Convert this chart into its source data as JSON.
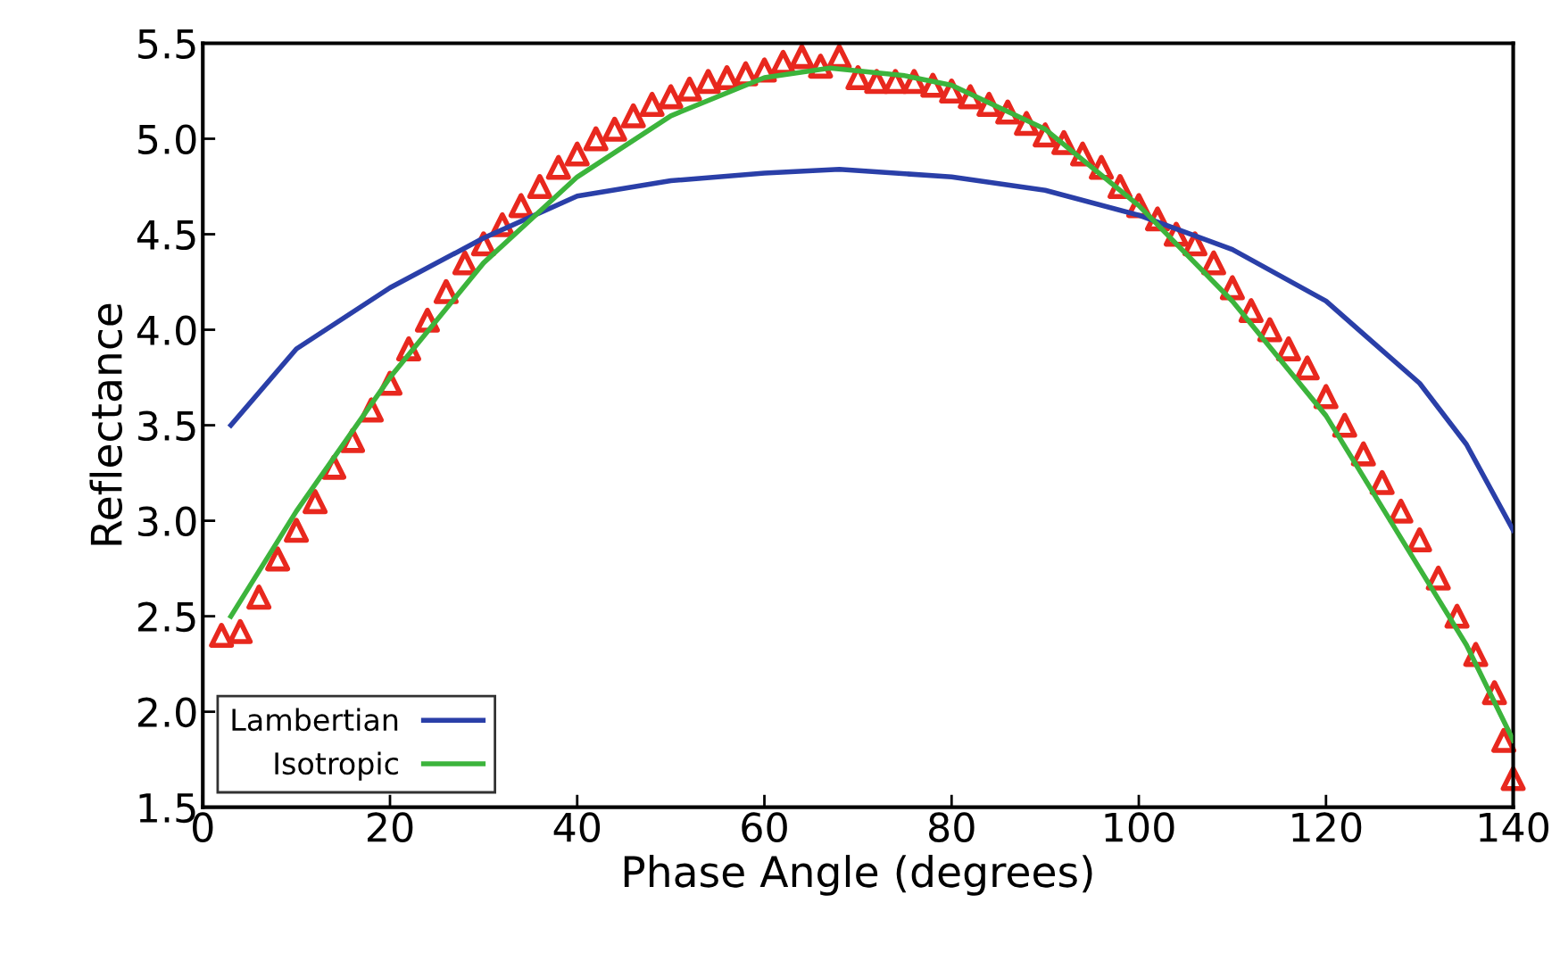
{
  "chart_data": {
    "type": "line",
    "xlabel": "Phase Angle (degrees)",
    "ylabel": "Reflectance",
    "xlim": [
      0,
      140
    ],
    "xticks": [
      0,
      20,
      40,
      60,
      80,
      100,
      120,
      140
    ],
    "ylim": [
      1.5,
      5.5
    ],
    "yticks": [
      {
        "value": 1.5,
        "label": "1.5"
      },
      {
        "value": 2.0,
        "label": "2.0"
      },
      {
        "value": 2.5,
        "label": "2.5"
      },
      {
        "value": 3.0,
        "label": "3.0"
      },
      {
        "value": 3.5,
        "label": "3.5"
      },
      {
        "value": 4.0,
        "label": "4.0"
      },
      {
        "value": 4.5,
        "label": "4.5"
      },
      {
        "value": 5.0,
        "label": "5.0"
      },
      {
        "value": 5.5,
        "label": "5.5"
      }
    ],
    "grid": false,
    "legend": "bottom left",
    "series": [
      {
        "type": "scatter",
        "marker": "triangle",
        "color": "#e8281e",
        "x": [
          2,
          4,
          6,
          8,
          10,
          12,
          14,
          16,
          18,
          20,
          22,
          24,
          26,
          28,
          30,
          32,
          34,
          36,
          38,
          40,
          42,
          44,
          46,
          48,
          50,
          52,
          54,
          56,
          58,
          60,
          62,
          64,
          66,
          68,
          70,
          72,
          74,
          76,
          78,
          80,
          82,
          84,
          86,
          88,
          90,
          92,
          94,
          96,
          98,
          100,
          102,
          104,
          106,
          108,
          110,
          112,
          114,
          116,
          118,
          120,
          122,
          124,
          126,
          128,
          130,
          132,
          134,
          136,
          138,
          139,
          140
        ],
        "values": [
          2.4,
          2.42,
          2.6,
          2.8,
          2.95,
          3.1,
          3.28,
          3.42,
          3.58,
          3.72,
          3.9,
          4.05,
          4.2,
          4.35,
          4.45,
          4.55,
          4.65,
          4.75,
          4.85,
          4.92,
          5.0,
          5.05,
          5.12,
          5.18,
          5.22,
          5.26,
          5.3,
          5.32,
          5.34,
          5.36,
          5.4,
          5.43,
          5.38,
          5.43,
          5.32,
          5.3,
          5.3,
          5.3,
          5.28,
          5.25,
          5.22,
          5.18,
          5.14,
          5.08,
          5.02,
          4.98,
          4.92,
          4.85,
          4.75,
          4.65,
          4.58,
          4.5,
          4.45,
          4.35,
          4.22,
          4.1,
          4.0,
          3.9,
          3.8,
          3.65,
          3.5,
          3.35,
          3.2,
          3.05,
          2.9,
          2.7,
          2.5,
          2.3,
          2.1,
          1.85,
          1.65
        ]
      },
      {
        "name": "Lambertian",
        "color": "#2a3fa8",
        "x": [
          3,
          10,
          20,
          30,
          40,
          50,
          60,
          68,
          80,
          90,
          100,
          110,
          120,
          130,
          135,
          140
        ],
        "values": [
          3.5,
          3.9,
          4.22,
          4.48,
          4.7,
          4.78,
          4.82,
          4.84,
          4.8,
          4.73,
          4.6,
          4.42,
          4.15,
          3.72,
          3.4,
          2.95
        ]
      },
      {
        "name": "Isotropic",
        "color": "#3cb43c",
        "x": [
          3,
          10,
          20,
          30,
          40,
          50,
          60,
          67,
          75,
          80,
          90,
          100,
          110,
          120,
          130,
          135,
          140
        ],
        "values": [
          2.5,
          3.05,
          3.75,
          4.35,
          4.8,
          5.12,
          5.32,
          5.37,
          5.33,
          5.28,
          5.05,
          4.65,
          4.15,
          3.55,
          2.75,
          2.35,
          1.85
        ]
      }
    ]
  }
}
